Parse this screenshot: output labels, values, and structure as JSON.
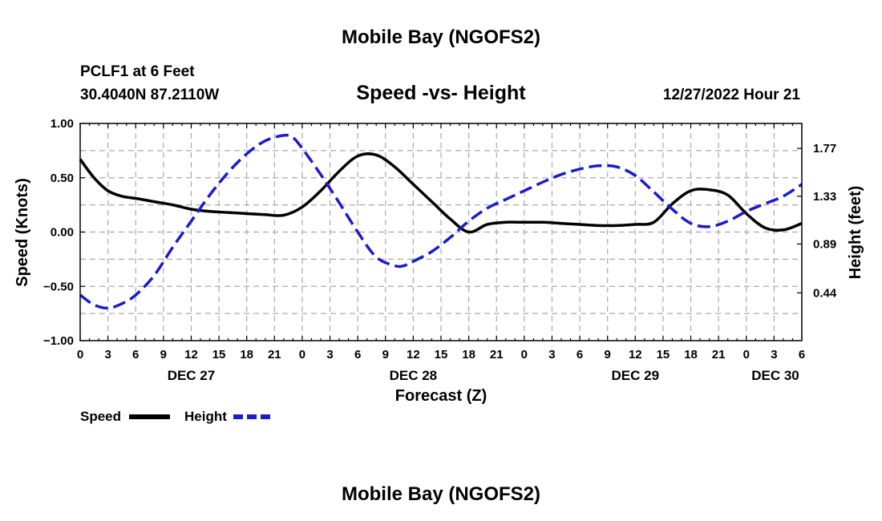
{
  "chart_data": {
    "type": "line",
    "title": "Mobile Bay (NGOFS2)",
    "bottom_title": "Mobile Bay (NGOFS2)",
    "subtitle": "Speed -vs- Height",
    "station": "PCLF1 at 6 Feet",
    "location": "30.4040N  87.2110W",
    "run_time": "12/27/2022 Hour 21",
    "xlabel": "Forecast (Z)",
    "ylabel_left": "Speed (Knots)",
    "ylabel_right": "Height (feet)",
    "x_range_hours": [
      0,
      78
    ],
    "x_tick_labels": [
      "0",
      "3",
      "6",
      "9",
      "12",
      "15",
      "18",
      "21",
      "0",
      "3",
      "6",
      "9",
      "12",
      "15",
      "18",
      "21",
      "0",
      "3",
      "6",
      "9",
      "12",
      "15",
      "18",
      "21",
      "0",
      "3",
      "6"
    ],
    "date_labels": [
      {
        "text": "DEC 27",
        "hour": 12
      },
      {
        "text": "DEC 28",
        "hour": 36
      },
      {
        "text": "DEC 29",
        "hour": 60
      },
      {
        "text": "DEC 30",
        "hour": 78
      }
    ],
    "y_left": {
      "range": [
        -1.0,
        1.0
      ],
      "ticks": [
        1.0,
        0.5,
        0.0,
        -0.5,
        -1.0
      ],
      "tick_labels": [
        "1.00",
        "0.50",
        "0.00",
        "−0.50",
        "−1.00"
      ]
    },
    "y_right": {
      "range": [
        0.0,
        2.0
      ],
      "ticks": [
        1.77,
        1.33,
        0.89,
        0.44
      ],
      "tick_labels": [
        "1.77",
        "1.33",
        "0.89",
        "0.44"
      ]
    },
    "grid": true,
    "series": [
      {
        "name": "Speed",
        "color": "#000000",
        "dashed": false,
        "axis": "left",
        "x": [
          0,
          1.5,
          3,
          4.5,
          6,
          8,
          10,
          12,
          14,
          16,
          18,
          20,
          22,
          24,
          26,
          28,
          30,
          32,
          34,
          36,
          38,
          40,
          42,
          44,
          46,
          48,
          50,
          52,
          54,
          56,
          58,
          60,
          62,
          64,
          66,
          68,
          70,
          72,
          74,
          76,
          78
        ],
        "values": [
          0.67,
          0.5,
          0.38,
          0.33,
          0.31,
          0.28,
          0.25,
          0.21,
          0.19,
          0.18,
          0.17,
          0.16,
          0.155,
          0.23,
          0.38,
          0.56,
          0.7,
          0.71,
          0.6,
          0.44,
          0.28,
          0.12,
          0.0,
          0.07,
          0.09,
          0.09,
          0.09,
          0.08,
          0.07,
          0.06,
          0.06,
          0.07,
          0.09,
          0.26,
          0.38,
          0.39,
          0.34,
          0.17,
          0.04,
          0.02,
          0.08
        ]
      },
      {
        "name": "Height",
        "color": "#1c1cc8",
        "dashed": true,
        "axis": "right",
        "x": [
          0,
          1.5,
          3,
          4.5,
          6,
          8,
          10,
          12,
          14,
          16,
          18,
          20,
          22,
          23,
          24,
          26,
          28,
          30,
          32,
          34,
          35,
          36,
          38,
          40,
          42,
          44,
          46,
          48,
          50,
          52,
          54,
          56,
          58,
          60,
          62,
          64,
          66,
          68,
          70,
          72,
          74,
          76,
          78
        ],
        "values": [
          0.42,
          0.33,
          0.3,
          0.34,
          0.42,
          0.6,
          0.86,
          1.1,
          1.34,
          1.55,
          1.72,
          1.84,
          1.89,
          1.87,
          1.77,
          1.53,
          1.27,
          1.0,
          0.77,
          0.69,
          0.69,
          0.73,
          0.82,
          0.95,
          1.1,
          1.22,
          1.3,
          1.38,
          1.46,
          1.53,
          1.58,
          1.61,
          1.6,
          1.52,
          1.37,
          1.21,
          1.08,
          1.05,
          1.1,
          1.19,
          1.26,
          1.33,
          1.44
        ]
      }
    ],
    "legend": [
      {
        "label": "Speed",
        "color": "#000000",
        "dashed": false
      },
      {
        "label": "Height",
        "color": "#1c1cc8",
        "dashed": true
      }
    ],
    "legend_position": "bottom-left"
  }
}
